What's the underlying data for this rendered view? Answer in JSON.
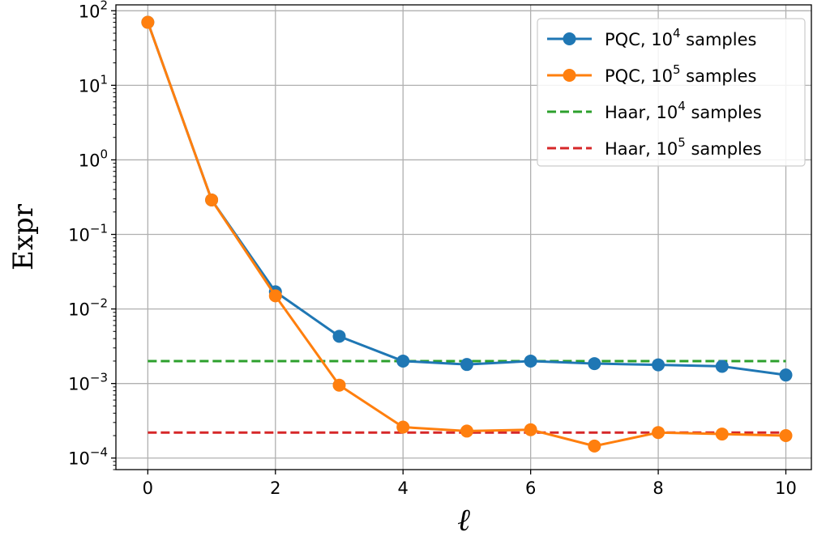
{
  "chart_data": {
    "type": "line",
    "xlabel": "ℓ",
    "ylabel": "Expr",
    "xlim": [
      -0.5,
      10.4
    ],
    "ylim": [
      7e-05,
      120
    ],
    "yscale": "log",
    "grid": true,
    "legend_position": "top-right",
    "x_ticks": [
      0,
      2,
      4,
      6,
      8,
      10
    ],
    "x_tick_labels": [
      "0",
      "2",
      "4",
      "6",
      "8",
      "10"
    ],
    "y_ticks": [
      {
        "value": 0.0001,
        "base": "10",
        "exp": "−4"
      },
      {
        "value": 0.001,
        "base": "10",
        "exp": "−3"
      },
      {
        "value": 0.01,
        "base": "10",
        "exp": "−2"
      },
      {
        "value": 0.1,
        "base": "10",
        "exp": "−1"
      },
      {
        "value": 1,
        "base": "10",
        "exp": "0"
      },
      {
        "value": 10,
        "base": "10",
        "exp": "1"
      },
      {
        "value": 100,
        "base": "10",
        "exp": "2"
      }
    ],
    "series": [
      {
        "name": "PQC, 10^4 samples",
        "label_pre": "PQC, 10",
        "label_exp": "4",
        "label_post": " samples",
        "color": "#1f77b4",
        "style": "solid-marker",
        "x": [
          0,
          1,
          2,
          3,
          4,
          5,
          6,
          7,
          8,
          9,
          10
        ],
        "values": [
          70,
          0.29,
          0.017,
          0.0043,
          0.002,
          0.0018,
          0.002,
          0.00185,
          0.00178,
          0.0017,
          0.0013
        ]
      },
      {
        "name": "PQC, 10^5 samples",
        "label_pre": "PQC, 10",
        "label_exp": "5",
        "label_post": " samples",
        "color": "#ff7f0e",
        "style": "solid-marker",
        "x": [
          0,
          1,
          2,
          3,
          4,
          5,
          6,
          7,
          8,
          9,
          10
        ],
        "values": [
          70,
          0.29,
          0.015,
          0.00095,
          0.00026,
          0.00023,
          0.00024,
          0.000145,
          0.00022,
          0.00021,
          0.0002
        ]
      },
      {
        "name": "Haar, 10^4 samples",
        "label_pre": "Haar, 10",
        "label_exp": "4",
        "label_post": " samples",
        "color": "#2ca02c",
        "style": "dashed",
        "x": [
          0,
          10
        ],
        "values": [
          0.002,
          0.002
        ]
      },
      {
        "name": "Haar, 10^5 samples",
        "label_pre": "Haar, 10",
        "label_exp": "5",
        "label_post": " samples",
        "color": "#d62728",
        "style": "dashed",
        "x": [
          0,
          10
        ],
        "values": [
          0.00022,
          0.00022
        ]
      }
    ]
  }
}
